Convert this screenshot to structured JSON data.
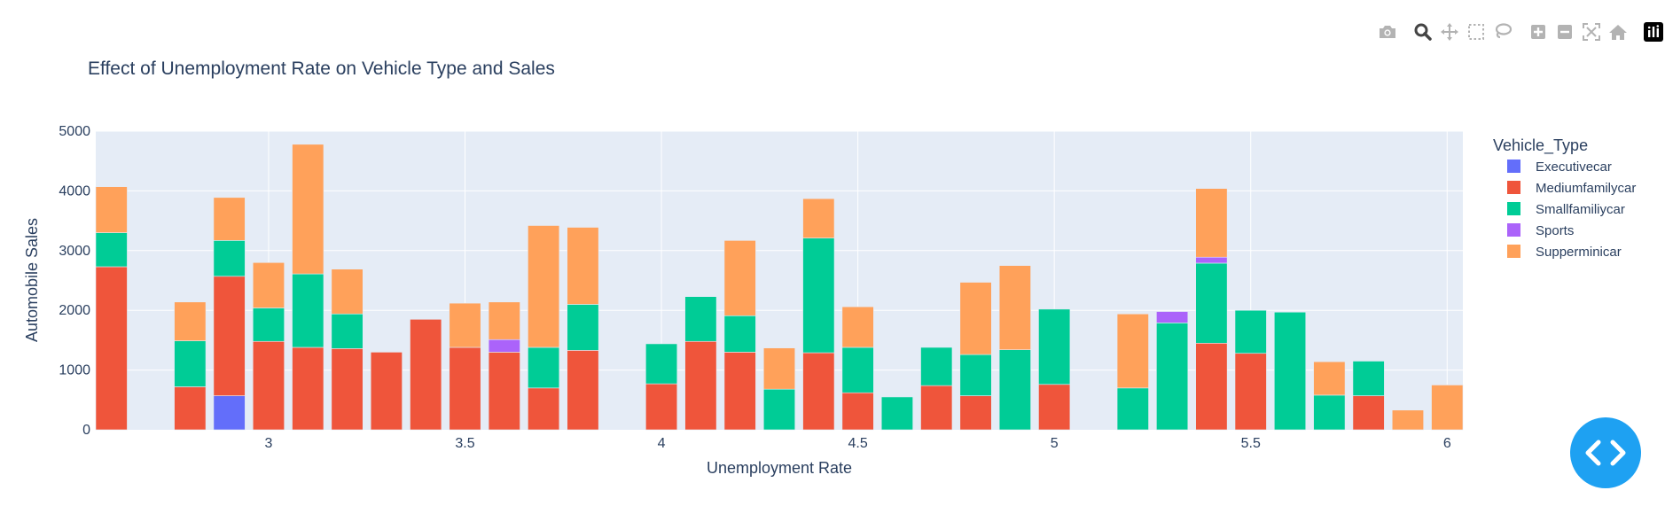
{
  "toolbar": {
    "icons": [
      "camera-icon",
      "zoom-icon",
      "pan-icon",
      "box-select-icon",
      "lasso-icon",
      "zoom-in-icon",
      "zoom-out-icon",
      "autoscale-icon",
      "reset-axes-icon",
      "plotly-logo-icon"
    ]
  },
  "code_button": {
    "icon": "code-brackets-icon",
    "color": "#1ea1f2"
  },
  "chart_data": {
    "type": "bar",
    "barmode": "stack",
    "title": "Effect of Unemployment Rate on Vehicle Type and Sales",
    "xlabel": "Unemployment Rate",
    "ylabel": "Automobile Sales",
    "xlim": [
      2.56,
      6.04
    ],
    "ylim": [
      0,
      5000
    ],
    "x_ticks": [
      "3",
      "3.5",
      "4",
      "4.5",
      "5",
      "5.5",
      "6"
    ],
    "y_ticks": [
      "0",
      "1000",
      "2000",
      "3000",
      "4000",
      "5000"
    ],
    "grid": true,
    "plot_bgcolor": "#e5ecf6",
    "legend": {
      "title": "Vehicle_Type",
      "position": "right"
    },
    "series": [
      {
        "name": "Executivecar",
        "color": "#636efa",
        "points": [
          [
            2.9,
            570
          ]
        ]
      },
      {
        "name": "Mediumfamilycar",
        "color": "#ef553b",
        "points": [
          [
            2.6,
            2730
          ],
          [
            2.8,
            720
          ],
          [
            2.9,
            2000
          ],
          [
            3.0,
            1480
          ],
          [
            3.1,
            1380
          ],
          [
            3.2,
            1360
          ],
          [
            3.3,
            1300
          ],
          [
            3.4,
            1850
          ],
          [
            3.5,
            1380
          ],
          [
            3.6,
            1300
          ],
          [
            3.7,
            700
          ],
          [
            3.8,
            1330
          ],
          [
            4.0,
            770
          ],
          [
            4.1,
            1480
          ],
          [
            4.2,
            1300
          ],
          [
            4.4,
            1290
          ],
          [
            4.5,
            620
          ],
          [
            4.7,
            740
          ],
          [
            4.8,
            570
          ],
          [
            5.0,
            760
          ],
          [
            5.4,
            1450
          ],
          [
            5.5,
            1280
          ],
          [
            5.8,
            570
          ]
        ]
      },
      {
        "name": "Smallfamiliycar",
        "color": "#00cc96",
        "points": [
          [
            2.6,
            570
          ],
          [
            2.8,
            770
          ],
          [
            2.9,
            600
          ],
          [
            3.0,
            560
          ],
          [
            3.1,
            1230
          ],
          [
            3.2,
            580
          ],
          [
            3.7,
            680
          ],
          [
            3.8,
            770
          ],
          [
            4.0,
            670
          ],
          [
            4.1,
            750
          ],
          [
            4.2,
            610
          ],
          [
            4.3,
            680
          ],
          [
            4.4,
            1920
          ],
          [
            4.5,
            760
          ],
          [
            4.6,
            550
          ],
          [
            4.7,
            640
          ],
          [
            4.8,
            690
          ],
          [
            4.9,
            1340
          ],
          [
            5.0,
            1260
          ],
          [
            5.2,
            700
          ],
          [
            5.3,
            1790
          ],
          [
            5.4,
            1340
          ],
          [
            5.5,
            720
          ],
          [
            5.6,
            1970
          ],
          [
            5.7,
            580
          ],
          [
            5.8,
            580
          ]
        ]
      },
      {
        "name": "Sports",
        "color": "#ab63fa",
        "points": [
          [
            3.6,
            210
          ],
          [
            5.3,
            190
          ],
          [
            5.4,
            100
          ]
        ]
      },
      {
        "name": "Supperminicar",
        "color": "#ffa15a",
        "points": [
          [
            2.6,
            770
          ],
          [
            2.8,
            650
          ],
          [
            2.9,
            720
          ],
          [
            3.0,
            760
          ],
          [
            3.1,
            2170
          ],
          [
            3.2,
            750
          ],
          [
            3.5,
            740
          ],
          [
            3.6,
            630
          ],
          [
            3.7,
            2040
          ],
          [
            3.8,
            1290
          ],
          [
            4.2,
            1260
          ],
          [
            4.3,
            690
          ],
          [
            4.4,
            660
          ],
          [
            4.5,
            680
          ],
          [
            4.8,
            1210
          ],
          [
            4.9,
            1410
          ],
          [
            5.2,
            1240
          ],
          [
            5.4,
            1150
          ],
          [
            5.7,
            560
          ],
          [
            5.9,
            330
          ],
          [
            6.0,
            750
          ]
        ]
      }
    ]
  }
}
